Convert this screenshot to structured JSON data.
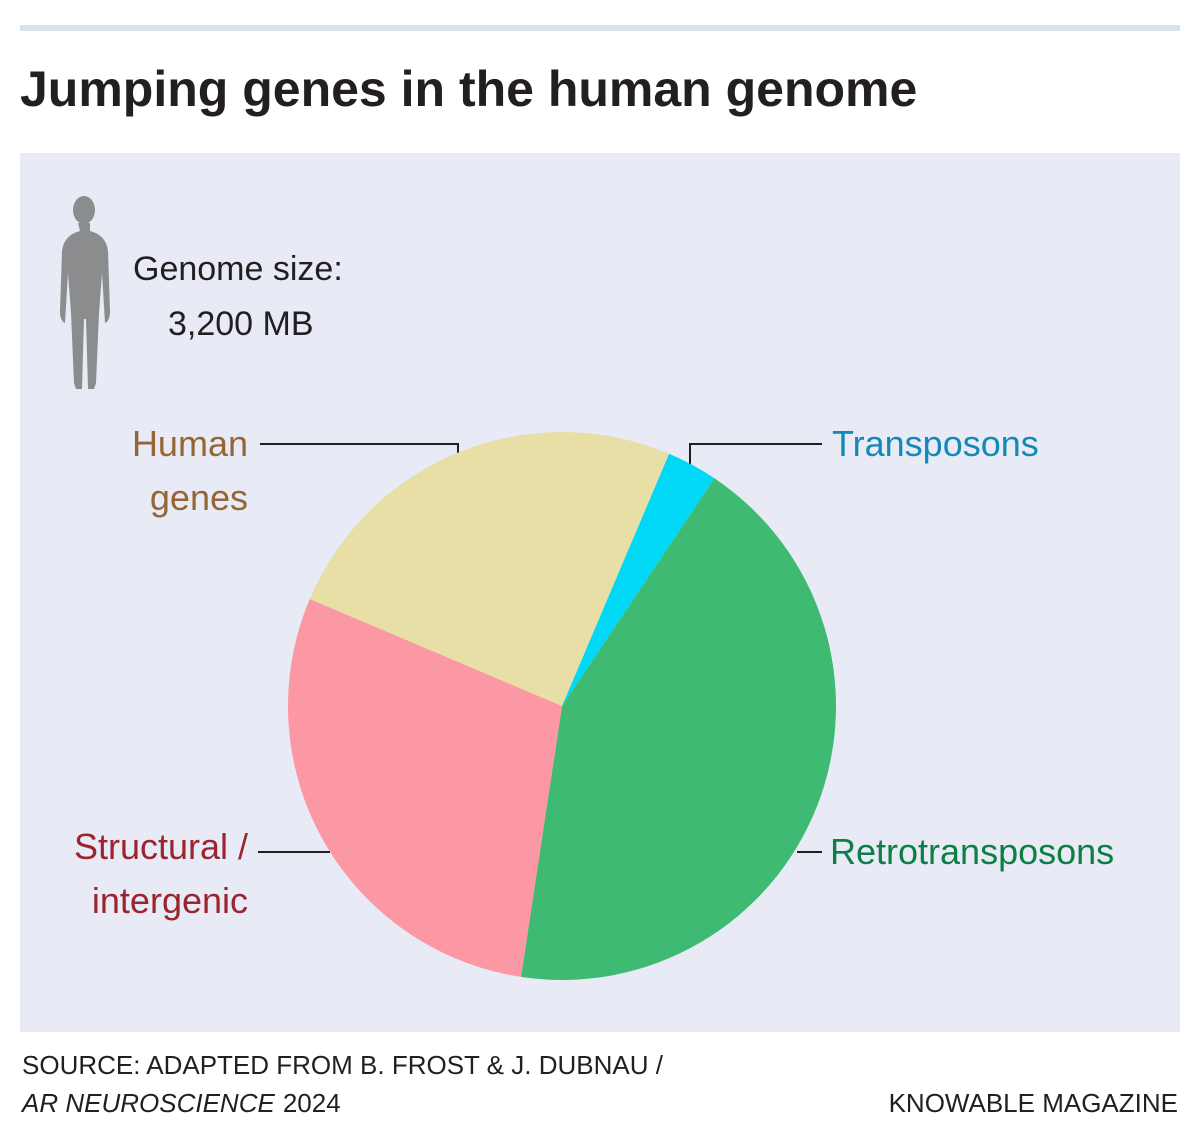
{
  "chart_data": {
    "type": "pie",
    "title": "Jumping genes in the human genome",
    "note_label": "Genome size:",
    "note_value": "3,200 MB",
    "categories": [
      "Transposons",
      "Retrotransposons",
      "Structural / intergenic",
      "Human genes"
    ],
    "values": [
      3,
      43,
      29,
      25
    ],
    "colors": [
      "#00d8f5",
      "#3fba72",
      "#fc98a4",
      "#e8dfa6"
    ],
    "label_colors": [
      "#1389b8",
      "#0f7e46",
      "#9a2530",
      "#946634"
    ],
    "source": {
      "text": "SOURCE: ADAPTED FROM B. FROST & J. DUBNAU /",
      "journal": "AR NEUROSCIENCE",
      "year": "2024"
    },
    "credit": "KNOWABLE MAGAZINE"
  }
}
